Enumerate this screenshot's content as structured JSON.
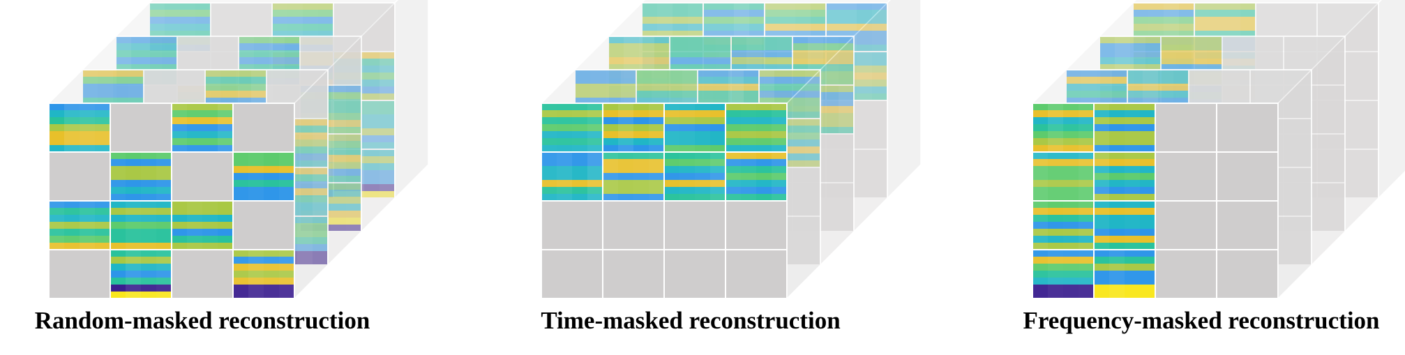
{
  "panels": [
    {
      "id": "random",
      "caption": "Random-masked reconstruction",
      "mask_pattern": "random",
      "layers": [
        [
          [
            1,
            0,
            1,
            0
          ],
          [
            0,
            1,
            0,
            1
          ],
          [
            1,
            1,
            1,
            0
          ],
          [
            0,
            1,
            0,
            1
          ]
        ],
        [
          [
            1,
            0,
            1,
            0
          ],
          [
            0,
            1,
            0,
            1
          ],
          [
            1,
            1,
            1,
            1
          ],
          [
            0,
            1,
            0,
            1
          ]
        ],
        [
          [
            1,
            0,
            1,
            0
          ],
          [
            0,
            1,
            0,
            1
          ],
          [
            1,
            0,
            1,
            1
          ],
          [
            0,
            1,
            0,
            1
          ]
        ],
        [
          [
            1,
            0,
            1,
            0
          ],
          [
            0,
            0,
            1,
            1
          ],
          [
            1,
            1,
            0,
            1
          ],
          [
            1,
            1,
            1,
            1
          ]
        ]
      ]
    },
    {
      "id": "time",
      "caption": "Time-masked reconstruction",
      "mask_pattern": "time",
      "layers": [
        [
          [
            1,
            1,
            1,
            1
          ],
          [
            1,
            1,
            1,
            1
          ],
          [
            0,
            0,
            0,
            0
          ],
          [
            0,
            0,
            0,
            0
          ]
        ],
        [
          [
            1,
            1,
            1,
            1
          ],
          [
            1,
            1,
            1,
            1
          ],
          [
            0,
            0,
            0,
            0
          ],
          [
            0,
            0,
            0,
            0
          ]
        ],
        [
          [
            1,
            1,
            1,
            1
          ],
          [
            1,
            1,
            1,
            1
          ],
          [
            0,
            0,
            0,
            0
          ],
          [
            0,
            0,
            0,
            0
          ]
        ],
        [
          [
            1,
            1,
            1,
            1
          ],
          [
            1,
            1,
            1,
            1
          ],
          [
            0,
            0,
            0,
            0
          ],
          [
            0,
            0,
            0,
            0
          ]
        ]
      ]
    },
    {
      "id": "frequency",
      "caption": "Frequency-masked reconstruction",
      "mask_pattern": "frequency",
      "layers": [
        [
          [
            1,
            1,
            0,
            0
          ],
          [
            1,
            1,
            0,
            0
          ],
          [
            1,
            1,
            0,
            0
          ],
          [
            1,
            1,
            0,
            0
          ]
        ],
        [
          [
            1,
            1,
            0,
            0
          ],
          [
            1,
            1,
            0,
            0
          ],
          [
            1,
            1,
            0,
            0
          ],
          [
            1,
            1,
            0,
            0
          ]
        ],
        [
          [
            1,
            1,
            0,
            0
          ],
          [
            1,
            1,
            0,
            0
          ],
          [
            1,
            1,
            0,
            0
          ],
          [
            1,
            1,
            0,
            0
          ]
        ],
        [
          [
            1,
            1,
            0,
            0
          ],
          [
            1,
            1,
            0,
            0
          ],
          [
            1,
            1,
            0,
            0
          ],
          [
            1,
            1,
            0,
            0
          ]
        ]
      ]
    }
  ],
  "colors": {
    "masked": "#cfcdcd",
    "masked_side": "#d9d8d8",
    "masked_top": "#e1e1e1",
    "grid_line": "#ffffff",
    "spectrogram_palette": [
      "#3b1f8f",
      "#3b6de6",
      "#2d95e9",
      "#20b6c6",
      "#28c29c",
      "#5ccb6c",
      "#a9c844",
      "#e8c02a",
      "#f9e71d"
    ]
  }
}
